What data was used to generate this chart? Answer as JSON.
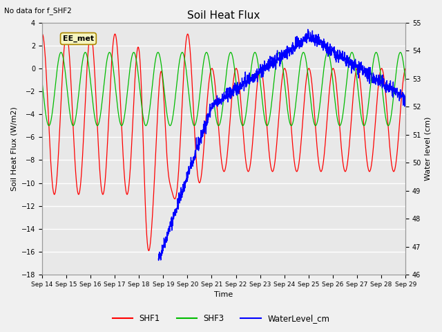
{
  "title": "Soil Heat Flux",
  "note": "No data for f_SHF2",
  "annotation": "EE_met",
  "xlabel": "Time",
  "ylabel_left": "Soil Heat Flux (W/m2)",
  "ylabel_right": "Water level (cm)",
  "ylim_left": [
    -18,
    4
  ],
  "ylim_right": [
    46.0,
    55.0
  ],
  "yticks_left": [
    -18,
    -16,
    -14,
    -12,
    -10,
    -8,
    -6,
    -4,
    -2,
    0,
    2,
    4
  ],
  "yticks_right": [
    46.0,
    47.0,
    48.0,
    49.0,
    50.0,
    51.0,
    52.0,
    53.0,
    54.0,
    55.0
  ],
  "xtick_labels": [
    "Sep 14",
    "Sep 15",
    "Sep 16",
    "Sep 17",
    "Sep 18",
    "Sep 19",
    "Sep 20",
    "Sep 21",
    "Sep 22",
    "Sep 23",
    "Sep 24",
    "Sep 25",
    "Sep 26",
    "Sep 27",
    "Sep 28",
    "Sep 29"
  ],
  "colors": {
    "SHF1": "#ff0000",
    "SHF3": "#00bb00",
    "WaterLevel": "#0000ff"
  },
  "legend_labels": [
    "SHF1",
    "SHF3",
    "WaterLevel_cm"
  ],
  "fig_bg": "#f0f0f0",
  "plot_bg": "#e8e8e8",
  "grid_color": "#ffffff"
}
